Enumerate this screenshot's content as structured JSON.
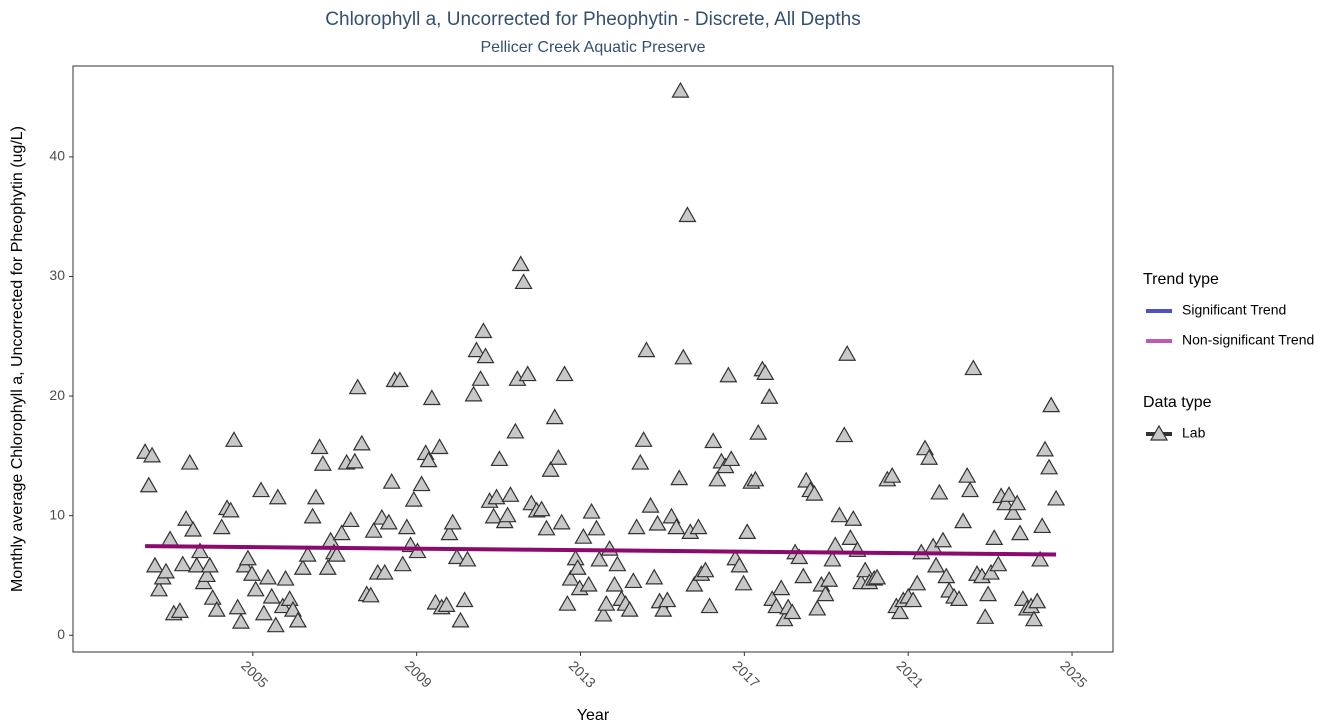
{
  "chart_data": {
    "type": "scatter",
    "title": "Chlorophyll a, Uncorrected for Pheophytin - Discrete, All Depths",
    "subtitle": "Pellicer Creek Aquatic Preserve",
    "x_label": "Year",
    "y_label": "Monthly average Chlorophyll a, Uncorrected for Pheophytin (ug/L)",
    "xlim": [
      2000.61,
      2026.0
    ],
    "ylim": [
      -1.4,
      47.6
    ],
    "xticks": [
      2005,
      2009,
      2013,
      2017,
      2021,
      2025
    ],
    "yticks": [
      0,
      10,
      20,
      30,
      40
    ],
    "grid": false,
    "legend": [
      {
        "title": "Trend type",
        "items": [
          {
            "name": "Significant Trend",
            "color": "#4f4fc8"
          },
          {
            "name": "Non-significant Trend",
            "color": "#c05aae"
          }
        ]
      },
      {
        "title": "Data type",
        "items": [
          {
            "name": "Lab",
            "color": "#c8c8c8"
          }
        ]
      }
    ],
    "series": [
      {
        "name": "Lab",
        "color": "#c8c8c8",
        "x": [
          2002.37,
          2002.54,
          2002.46,
          2002.61,
          2002.71,
          2002.8,
          2002.88,
          2002.98,
          2003.07,
          2003.22,
          2003.29,
          2003.37,
          2003.46,
          2003.54,
          2003.63,
          2003.71,
          2003.8,
          2003.88,
          2003.95,
          2004.02,
          2004.12,
          2004.24,
          2004.37,
          2004.46,
          2004.54,
          2004.63,
          2004.71,
          2004.8,
          2004.88,
          2004.98,
          2005.07,
          2005.2,
          2005.27,
          2005.37,
          2005.46,
          2005.56,
          2005.61,
          2005.73,
          2005.8,
          2005.9,
          2005.98,
          2006.1,
          2006.22,
          2006.34,
          2006.46,
          2006.54,
          2006.63,
          2006.71,
          2006.83,
          2006.9,
          2006.98,
          2007.05,
          2007.17,
          2007.29,
          2007.39,
          2007.49,
          2007.56,
          2007.66,
          2007.78,
          2007.88,
          2007.95,
          2008.05,
          2008.15,
          2008.22,
          2008.32,
          2008.39,
          2008.46,
          2008.59,
          2008.66,
          2008.76,
          2008.85,
          2008.93,
          2009.02,
          2009.12,
          2009.22,
          2009.29,
          2009.37,
          2009.46,
          2009.56,
          2009.61,
          2009.73,
          2009.8,
          2009.88,
          2009.98,
          2010.07,
          2010.17,
          2010.24,
          2010.39,
          2010.46,
          2010.56,
          2010.63,
          2010.68,
          2010.78,
          2010.88,
          2010.95,
          2011.02,
          2011.15,
          2011.22,
          2011.29,
          2011.41,
          2011.46,
          2011.54,
          2011.61,
          2011.71,
          2011.8,
          2011.93,
          2012.05,
          2012.17,
          2012.27,
          2012.37,
          2012.46,
          2012.54,
          2012.61,
          2012.68,
          2012.76,
          2012.88,
          2012.93,
          2012.98,
          2013.07,
          2013.2,
          2013.27,
          2013.39,
          2013.46,
          2013.56,
          2013.63,
          2013.71,
          2013.83,
          2013.9,
          2014.0,
          2014.1,
          2014.2,
          2014.29,
          2014.37,
          2014.46,
          2014.54,
          2014.61,
          2014.71,
          2014.8,
          2014.88,
          2014.93,
          2015.02,
          2015.12,
          2015.22,
          2015.34,
          2015.41,
          2015.44,
          2015.51,
          2015.61,
          2015.68,
          2015.78,
          2015.88,
          2015.95,
          2016.05,
          2016.15,
          2016.24,
          2016.34,
          2016.44,
          2016.54,
          2016.61,
          2016.68,
          2016.78,
          2016.88,
          2016.98,
          2017.07,
          2017.17,
          2017.27,
          2017.34,
          2017.44,
          2017.51,
          2017.61,
          2017.68,
          2017.78,
          2017.9,
          2017.98,
          2018.07,
          2018.17,
          2018.24,
          2018.34,
          2018.44,
          2018.51,
          2018.61,
          2018.71,
          2018.78,
          2018.88,
          2018.98,
          2019.07,
          2019.15,
          2019.22,
          2019.32,
          2019.44,
          2019.51,
          2019.59,
          2019.66,
          2019.76,
          2019.85,
          2019.95,
          2020.05,
          2020.17,
          2020.24,
          2020.49,
          2020.61,
          2020.71,
          2020.8,
          2020.88,
          2021.0,
          2021.12,
          2021.22,
          2021.32,
          2021.41,
          2021.51,
          2021.61,
          2021.68,
          2021.76,
          2021.85,
          2021.93,
          2022.0,
          2022.12,
          2022.24,
          2022.34,
          2022.44,
          2022.51,
          2022.59,
          2022.68,
          2022.8,
          2022.88,
          2022.95,
          2023.02,
          2023.1,
          2023.2,
          2023.27,
          2023.37,
          2023.46,
          2023.56,
          2023.66,
          2023.73,
          2023.8,
          2023.9,
          2024.0,
          2024.07,
          2024.15,
          2024.22,
          2024.27,
          2024.34,
          2024.44,
          2024.49,
          2024.61
        ],
        "values": [
          15.3,
          15.0,
          12.5,
          5.8,
          3.8,
          4.8,
          5.3,
          8.0,
          1.8,
          2.0,
          5.9,
          9.7,
          14.4,
          8.8,
          5.8,
          7.0,
          4.4,
          5.0,
          5.8,
          3.1,
          2.1,
          9.0,
          10.6,
          10.4,
          16.3,
          2.3,
          1.1,
          5.8,
          6.4,
          5.1,
          3.8,
          12.1,
          1.8,
          4.8,
          3.2,
          0.8,
          11.5,
          2.4,
          4.7,
          3.0,
          2.1,
          1.2,
          5.6,
          6.7,
          9.9,
          11.5,
          15.7,
          14.3,
          5.6,
          7.9,
          6.9,
          6.7,
          8.5,
          14.4,
          9.6,
          14.5,
          20.7,
          16.0,
          3.4,
          3.3,
          8.7,
          5.2,
          9.8,
          5.2,
          9.4,
          12.8,
          21.3,
          21.3,
          5.9,
          9.0,
          7.5,
          11.3,
          7.0,
          12.6,
          15.2,
          14.6,
          19.8,
          2.7,
          15.7,
          2.3,
          2.5,
          8.5,
          9.4,
          6.5,
          1.2,
          2.9,
          6.3,
          20.1,
          23.8,
          21.4,
          25.4,
          23.3,
          11.2,
          9.9,
          11.5,
          14.7,
          9.5,
          10.0,
          11.7,
          17.0,
          21.4,
          31.0,
          29.5,
          21.8,
          11.0,
          10.4,
          10.5,
          8.9,
          13.8,
          18.2,
          14.8,
          9.4,
          21.8,
          2.6,
          4.7,
          6.4,
          5.6,
          3.9,
          8.2,
          4.2,
          10.3,
          8.9,
          6.3,
          1.7,
          2.6,
          7.2,
          4.2,
          5.9,
          3.0,
          2.6,
          2.1,
          4.5,
          9.0,
          14.4,
          16.3,
          23.8,
          10.8,
          4.8,
          9.3,
          2.8,
          2.1,
          2.9,
          9.9,
          9.0,
          13.1,
          45.5,
          23.2,
          35.1,
          8.6,
          4.2,
          9.0,
          5.1,
          5.4,
          2.4,
          16.2,
          13.0,
          14.5,
          14.1,
          21.7,
          14.7,
          6.4,
          5.8,
          4.3,
          8.6,
          12.8,
          13.0,
          16.9,
          22.2,
          21.9,
          19.9,
          3.0,
          2.4,
          3.9,
          1.3,
          2.3,
          1.9,
          6.9,
          6.5,
          4.9,
          12.9,
          12.1,
          11.8,
          2.2,
          4.2,
          3.4,
          4.6,
          6.3,
          7.5,
          10.0,
          16.7,
          23.5,
          8.1,
          9.7,
          7.1,
          4.4,
          5.4,
          4.4,
          4.7,
          4.8,
          13.0,
          13.3,
          2.4,
          1.9,
          2.9,
          3.2,
          2.9,
          4.3,
          6.9,
          15.6,
          14.8,
          7.4,
          5.8,
          11.9,
          7.9,
          4.9,
          3.7,
          3.2,
          3.0,
          9.5,
          13.3,
          12.1,
          22.3,
          5.1,
          4.9,
          1.5,
          3.4,
          5.2,
          8.1,
          5.9,
          11.6,
          11.0,
          11.7,
          10.2,
          11.0,
          8.5,
          3.0,
          2.2,
          2.4,
          1.3,
          2.8,
          6.3,
          9.1,
          15.5,
          14.0,
          19.2,
          11.4
        ]
      }
    ],
    "trend": {
      "type": "line",
      "color": "#8b0a6b",
      "x": [
        2002.37,
        2024.61
      ],
      "values": [
        7.45,
        6.75
      ]
    }
  }
}
